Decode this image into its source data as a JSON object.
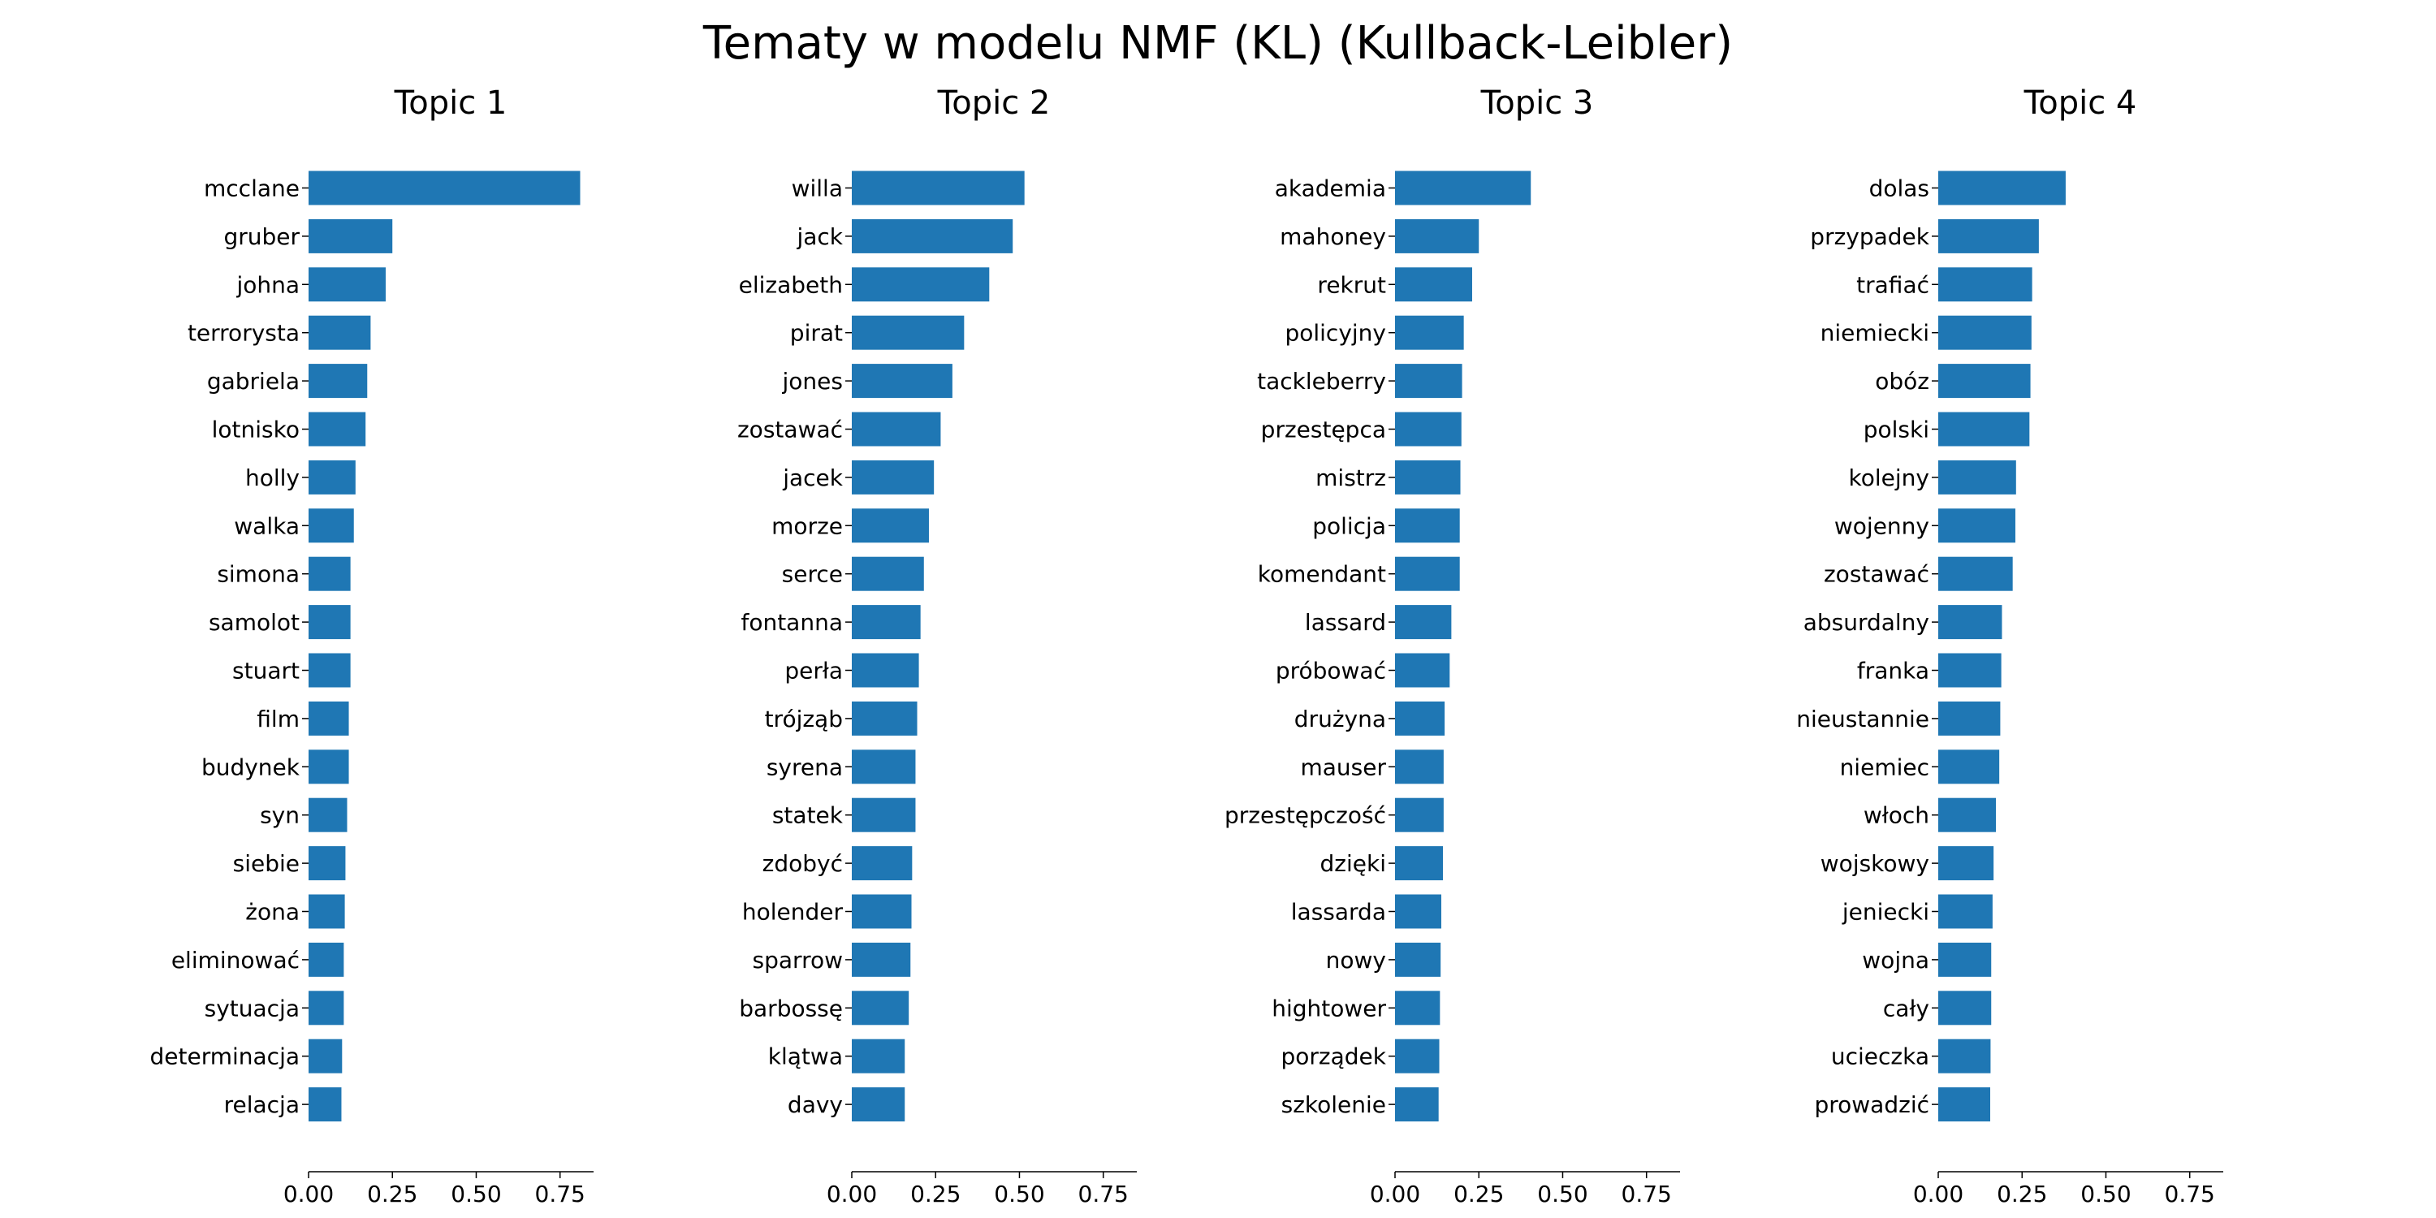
{
  "title": "Tematy w modelu NMF (KL) (Kullback-Leibler)",
  "colors": {
    "bar": "#1f77b4",
    "axis": "#000000"
  },
  "chart_data": [
    {
      "type": "bar",
      "orientation": "horizontal",
      "title": "Topic 1",
      "xlim": [
        0,
        0.85
      ],
      "xticks": [
        "0.00",
        "0.25",
        "0.50",
        "0.75"
      ],
      "categories": [
        "mcclane",
        "gruber",
        "johna",
        "terrorysta",
        "gabriela",
        "lotnisko",
        "holly",
        "walka",
        "simona",
        "samolot",
        "stuart",
        "film",
        "budynek",
        "syn",
        "siebie",
        "żona",
        "eliminować",
        "sytuacja",
        "determinacja",
        "relacja"
      ],
      "values": [
        0.81,
        0.25,
        0.23,
        0.185,
        0.175,
        0.17,
        0.14,
        0.135,
        0.125,
        0.125,
        0.125,
        0.12,
        0.12,
        0.115,
        0.11,
        0.108,
        0.105,
        0.105,
        0.1,
        0.098
      ]
    },
    {
      "type": "bar",
      "orientation": "horizontal",
      "title": "Topic 2",
      "xlim": [
        0,
        0.85
      ],
      "xticks": [
        "0.00",
        "0.25",
        "0.50",
        "0.75"
      ],
      "categories": [
        "willa",
        "jack",
        "elizabeth",
        "pirat",
        "jones",
        "zostawać",
        "jacek",
        "morze",
        "serce",
        "fontanna",
        "perła",
        "trójząb",
        "syrena",
        "statek",
        "zdobyć",
        "holender",
        "sparrow",
        "barbossę",
        "klątwa",
        "davy"
      ],
      "values": [
        0.515,
        0.48,
        0.41,
        0.335,
        0.3,
        0.265,
        0.245,
        0.23,
        0.215,
        0.205,
        0.2,
        0.195,
        0.19,
        0.19,
        0.18,
        0.178,
        0.175,
        0.17,
        0.158,
        0.158
      ]
    },
    {
      "type": "bar",
      "orientation": "horizontal",
      "title": "Topic 3",
      "xlim": [
        0,
        0.85
      ],
      "xticks": [
        "0.00",
        "0.25",
        "0.50",
        "0.75"
      ],
      "categories": [
        "akademia",
        "mahoney",
        "rekrut",
        "policyjny",
        "tackleberry",
        "przestępca",
        "mistrz",
        "policja",
        "komendant",
        "lassard",
        "próbować",
        "drużyna",
        "mauser",
        "przestępczość",
        "dzięki",
        "lassarda",
        "nowy",
        "hightower",
        "porządek",
        "szkolenie"
      ],
      "values": [
        0.405,
        0.25,
        0.23,
        0.205,
        0.2,
        0.198,
        0.195,
        0.193,
        0.193,
        0.168,
        0.163,
        0.148,
        0.145,
        0.145,
        0.143,
        0.138,
        0.136,
        0.134,
        0.132,
        0.13
      ]
    },
    {
      "type": "bar",
      "orientation": "horizontal",
      "title": "Topic 4",
      "xlim": [
        0,
        0.85
      ],
      "xticks": [
        "0.00",
        "0.25",
        "0.50",
        "0.75"
      ],
      "categories": [
        "dolas",
        "przypadek",
        "trafiać",
        "niemiecki",
        "obóz",
        "polski",
        "kolejny",
        "wojenny",
        "zostawać",
        "absurdalny",
        "franka",
        "nieustannie",
        "niemiec",
        "włoch",
        "wojskowy",
        "jeniecki",
        "wojna",
        "cały",
        "ucieczka",
        "prowadzić"
      ],
      "values": [
        0.38,
        0.3,
        0.28,
        0.278,
        0.275,
        0.272,
        0.232,
        0.23,
        0.222,
        0.19,
        0.188,
        0.185,
        0.182,
        0.172,
        0.165,
        0.162,
        0.158,
        0.158,
        0.156,
        0.155
      ]
    }
  ]
}
